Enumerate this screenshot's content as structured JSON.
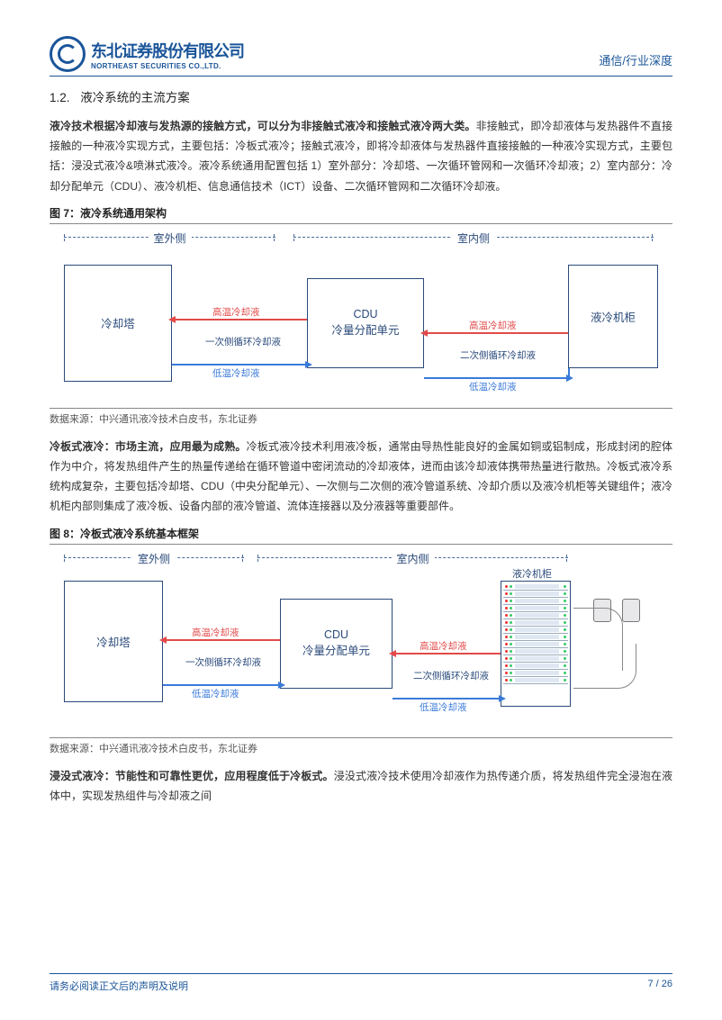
{
  "header": {
    "company_cn": "东北证券股份有限公司",
    "company_en": "NORTHEAST SECURITIES CO.,LTD.",
    "category": "通信/行业深度"
  },
  "section": {
    "number": "1.2.",
    "title": "液冷系统的主流方案"
  },
  "para1": {
    "strong": "液冷技术根据冷却液与发热源的接触方式，可以分为非接触式液冷和接触式液冷两大类。",
    "rest": "非接触式，即冷却液体与发热器件不直接接触的一种液冷实现方式，主要包括：冷板式液冷；接触式液冷，即将冷却液体与发热器件直接接触的一种液冷实现方式，主要包括：浸没式液冷&喷淋式液冷。液冷系统通用配置包括 1）室外部分：冷却塔、一次循环管网和一次循环冷却液；2）室内部分：冷却分配单元（CDU）、液冷机柜、信息通信技术（ICT）设备、二次循环管网和二次循环冷却液。"
  },
  "fig7": {
    "label": "图 7：液冷系统通用架构",
    "bracket_out": "室外侧",
    "bracket_in": "室内侧",
    "nodes": {
      "tower": "冷却塔",
      "cdu_line1": "CDU",
      "cdu_line2": "冷量分配单元",
      "cabinet": "液冷机柜"
    },
    "flows": {
      "hot": "高温冷却液",
      "cold": "低温冷却液",
      "loop1": "一次侧循环冷却液",
      "loop2": "二次侧循环冷却液"
    },
    "source": "数据来源：中兴通讯液冷技术白皮书，东北证券",
    "colors": {
      "box_border": "#2a4a7a",
      "hot": "#e34a4a",
      "cold": "#3a7ad9",
      "dash": "#4a6a9a"
    }
  },
  "para2": {
    "strong": "冷板式液冷：市场主流，应用最为成熟。",
    "rest": "冷板式液冷技术利用液冷板，通常由导热性能良好的金属如铜或铝制成，形成封闭的腔体作为中介，将发热组件产生的热量传递给在循环管道中密闭流动的冷却液体，进而由该冷却液体携带热量进行散热。冷板式液冷系统构成复杂，主要包括冷却塔、CDU（中央分配单元）、一次侧与二次侧的液冷管道系统、冷却介质以及液冷机柜等关键组件；液冷机柜内部则集成了液冷板、设备内部的液冷管道、流体连接器以及分液器等重要部件。"
  },
  "fig8": {
    "label": "图 8：冷板式液冷系统基本框架",
    "bracket_out": "室外侧",
    "bracket_in": "室内侧",
    "nodes": {
      "tower": "冷却塔",
      "cdu_line1": "CDU",
      "cdu_line2": "冷量分配单元",
      "cab_title": "液冷机柜"
    },
    "flows": {
      "hot": "高温冷却液",
      "cold": "低温冷却液",
      "loop1": "一次侧循环冷却液",
      "loop2": "二次侧循环冷却液"
    },
    "cab_rows": 14,
    "source": "数据来源：中兴通讯液冷技术白皮书，东北证券"
  },
  "para3": {
    "strong": "浸没式液冷：节能性和可靠性更优，应用程度低于冷板式。",
    "rest": "浸没式液冷技术使用冷却液作为热传递介质，将发热组件完全浸泡在液体中，实现发热组件与冷却液之间"
  },
  "footer": {
    "note": "请务必阅读正文后的声明及说明",
    "page": "7 / 26"
  }
}
